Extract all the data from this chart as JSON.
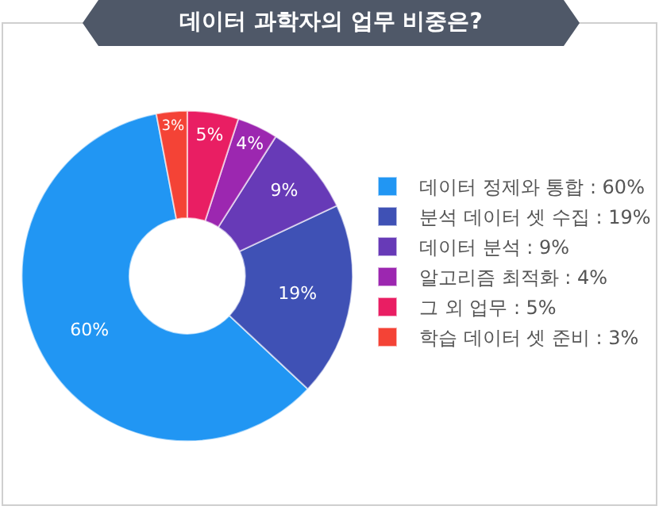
{
  "chart_data": {
    "type": "donut",
    "title": "데이터 과학자의 업무 비중은?",
    "categories": [
      "데이터 정제와 통합 : 60%",
      "분석 데이터 셋 수집 : 19%",
      "데이터 분석 : 9%",
      "알고리즘 최적화 : 4%",
      "그 외 업무 : 5%",
      "학습 데이터 셋 준비 : 3%"
    ],
    "values": [
      60,
      19,
      9,
      4,
      5,
      3
    ],
    "value_labels": [
      "60%",
      "19%",
      "9%",
      "4%",
      "5%",
      "3%"
    ],
    "colors": [
      "#2196f3",
      "#3f51b5",
      "#673ab7",
      "#9c27b0",
      "#e91e63",
      "#f44336"
    ],
    "legend": "right"
  }
}
